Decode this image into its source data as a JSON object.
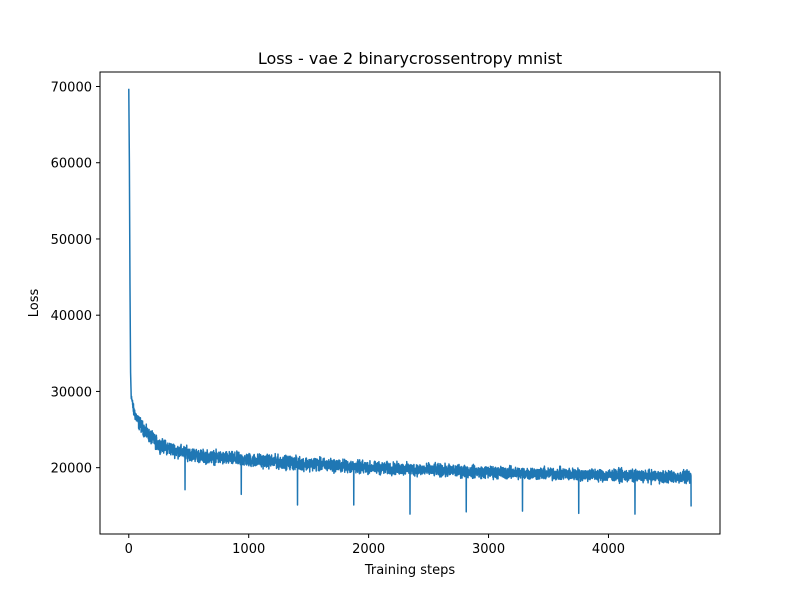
{
  "chart_data": {
    "type": "line",
    "title": "Loss - vae 2 binarycrossentropy mnist",
    "xlabel": "Training steps",
    "ylabel": "Loss",
    "xlim": [
      -240,
      4930
    ],
    "ylim": [
      11300,
      71900
    ],
    "xticks": [
      0,
      1000,
      2000,
      3000,
      4000
    ],
    "xtick_labels": [
      "0",
      "1000",
      "2000",
      "3000",
      "4000"
    ],
    "yticks": [
      20000,
      30000,
      40000,
      50000,
      60000,
      70000
    ],
    "ytick_labels": [
      "20000",
      "30000",
      "40000",
      "50000",
      "60000",
      "70000"
    ],
    "grid": false,
    "line_color": "#1f77b4",
    "series": [
      {
        "name": "",
        "n_points": 4690,
        "envelope": [
          {
            "x": 0,
            "mean": 69700,
            "noise": 0
          },
          {
            "x": 5,
            "mean": 60000,
            "noise": 0
          },
          {
            "x": 10,
            "mean": 44000,
            "noise": 0
          },
          {
            "x": 15,
            "mean": 32500,
            "noise": 0
          },
          {
            "x": 20,
            "mean": 29500,
            "noise": 300
          },
          {
            "x": 40,
            "mean": 27500,
            "noise": 600
          },
          {
            "x": 80,
            "mean": 26000,
            "noise": 700
          },
          {
            "x": 150,
            "mean": 24500,
            "noise": 700
          },
          {
            "x": 250,
            "mean": 23000,
            "noise": 700
          },
          {
            "x": 400,
            "mean": 22200,
            "noise": 700
          },
          {
            "x": 600,
            "mean": 21500,
            "noise": 700
          },
          {
            "x": 1000,
            "mean": 21000,
            "noise": 700
          },
          {
            "x": 1500,
            "mean": 20500,
            "noise": 700
          },
          {
            "x": 2000,
            "mean": 20000,
            "noise": 650
          },
          {
            "x": 2500,
            "mean": 19700,
            "noise": 650
          },
          {
            "x": 3000,
            "mean": 19400,
            "noise": 650
          },
          {
            "x": 3500,
            "mean": 19200,
            "noise": 650
          },
          {
            "x": 4000,
            "mean": 19000,
            "noise": 650
          },
          {
            "x": 4500,
            "mean": 18800,
            "noise": 650
          },
          {
            "x": 4690,
            "mean": 18700,
            "noise": 650
          }
        ],
        "dips": [
          {
            "x": 469,
            "y": 17100
          },
          {
            "x": 938,
            "y": 16500
          },
          {
            "x": 1407,
            "y": 15100
          },
          {
            "x": 1876,
            "y": 15100
          },
          {
            "x": 2345,
            "y": 13900
          },
          {
            "x": 2814,
            "y": 14200
          },
          {
            "x": 3283,
            "y": 14300
          },
          {
            "x": 3752,
            "y": 14000
          },
          {
            "x": 4221,
            "y": 13900
          },
          {
            "x": 4689,
            "y": 14900
          }
        ]
      }
    ]
  }
}
